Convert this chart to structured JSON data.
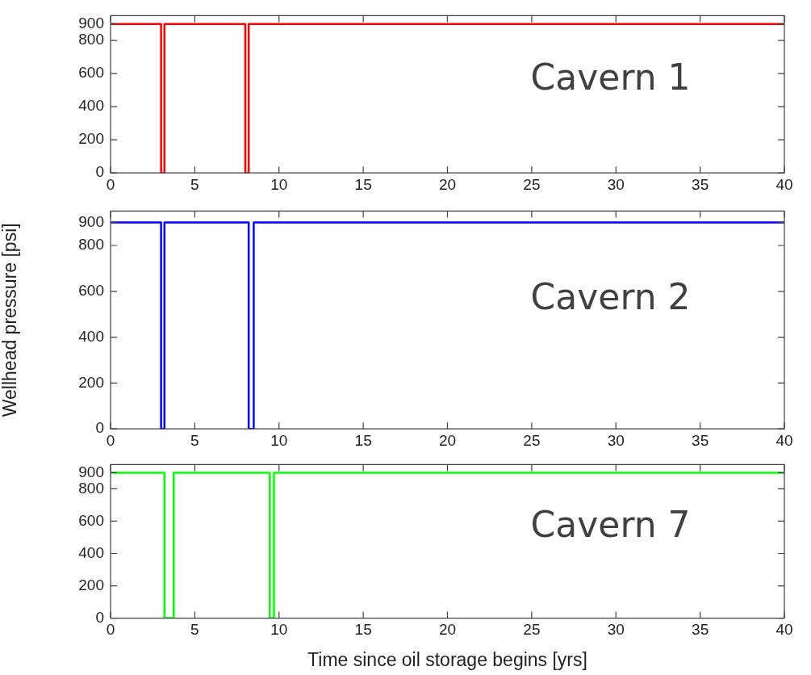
{
  "chart_data": [
    {
      "type": "line",
      "x": [
        0,
        3.0,
        3.0,
        3.2,
        3.2,
        8.0,
        8.0,
        8.2,
        8.2,
        40
      ],
      "series": [
        {
          "color": "#ff0000",
          "values": [
            900,
            900,
            0,
            0,
            900,
            900,
            0,
            0,
            900,
            900
          ]
        }
      ],
      "xlim": [
        0,
        40
      ],
      "xticks": [
        0,
        5,
        10,
        15,
        20,
        25,
        30,
        35,
        40
      ],
      "ylim": [
        0,
        950
      ],
      "yticks": [
        0,
        200,
        400,
        600,
        800,
        900
      ],
      "grid": false,
      "legend": false,
      "marker": "none",
      "annotations": [
        "Cavern 1"
      ]
    },
    {
      "type": "line",
      "x": [
        0,
        3.0,
        3.0,
        3.2,
        3.2,
        8.2,
        8.2,
        8.5,
        8.5,
        40
      ],
      "series": [
        {
          "color": "#0000ff",
          "values": [
            900,
            900,
            0,
            0,
            900,
            900,
            0,
            0,
            900,
            900
          ]
        }
      ],
      "xlim": [
        0,
        40
      ],
      "xticks": [
        0,
        5,
        10,
        15,
        20,
        25,
        30,
        35,
        40
      ],
      "ylim": [
        0,
        950
      ],
      "yticks": [
        0,
        200,
        400,
        600,
        800,
        900
      ],
      "ylabel": "Wellhead pressure [psi]",
      "grid": false,
      "legend": false,
      "marker": "none",
      "annotations": [
        "Cavern 2"
      ]
    },
    {
      "type": "line",
      "x": [
        0,
        3.2,
        3.2,
        3.75,
        3.75,
        9.45,
        9.45,
        9.7,
        9.7,
        40
      ],
      "series": [
        {
          "color": "#00ff00",
          "values": [
            900,
            900,
            0,
            0,
            900,
            900,
            0,
            0,
            900,
            900
          ]
        }
      ],
      "xlim": [
        0,
        40
      ],
      "xticks": [
        0,
        5,
        10,
        15,
        20,
        25,
        30,
        35,
        40
      ],
      "ylim": [
        0,
        950
      ],
      "yticks": [
        0,
        200,
        400,
        600,
        800,
        900
      ],
      "xlabel": "Time since oil storage begins [yrs]",
      "grid": false,
      "legend": false,
      "marker": "none",
      "annotations": [
        "Cavern 7"
      ]
    }
  ]
}
